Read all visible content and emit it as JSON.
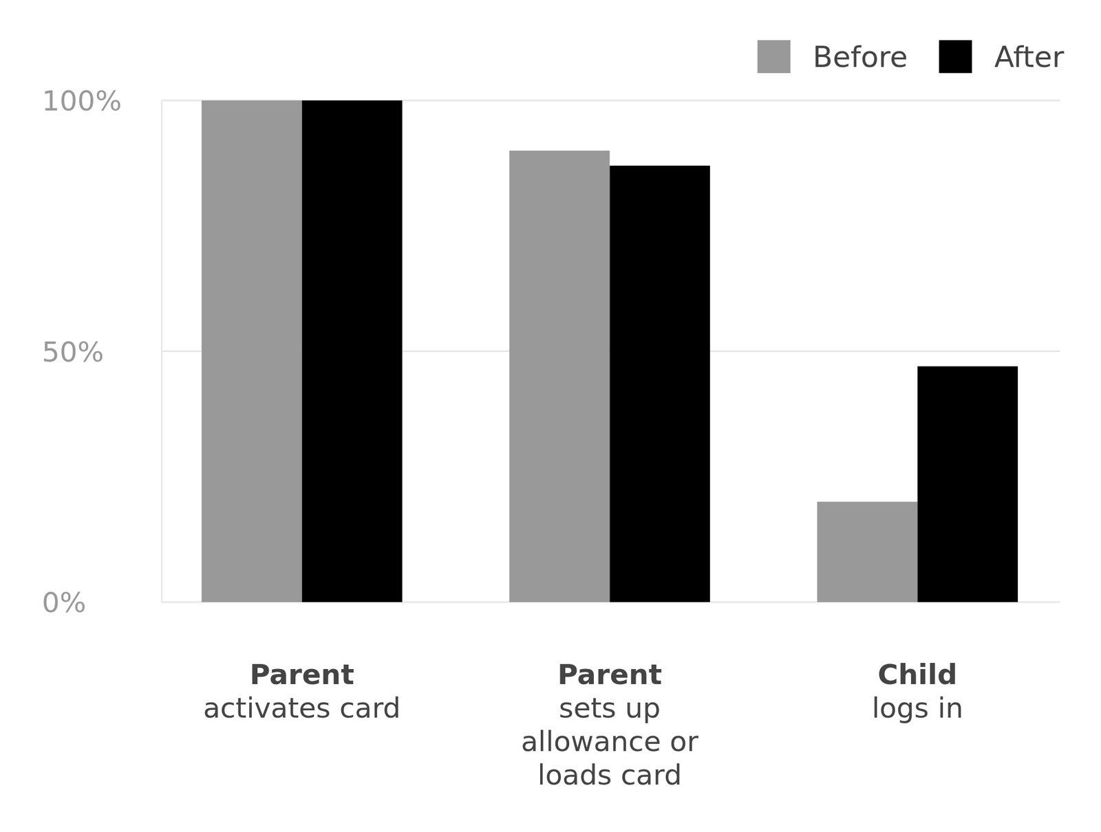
{
  "chart_data": {
    "type": "bar",
    "categories": [
      "Parent\nactivates card",
      "Parent\nsets up\nallowance or\nloads card",
      "Child\nlogs in"
    ],
    "series": [
      {
        "name": "Before",
        "color": "#999999",
        "values": [
          100,
          90,
          20
        ]
      },
      {
        "name": "After",
        "color": "#000000",
        "values": [
          100,
          87,
          47
        ]
      }
    ],
    "ylim": [
      0,
      100
    ],
    "yticks": [
      {
        "value": 0,
        "label": "0%"
      },
      {
        "value": 50,
        "label": "50%"
      },
      {
        "value": 100,
        "label": "100%"
      }
    ],
    "grid": true,
    "legend": "top-right"
  }
}
